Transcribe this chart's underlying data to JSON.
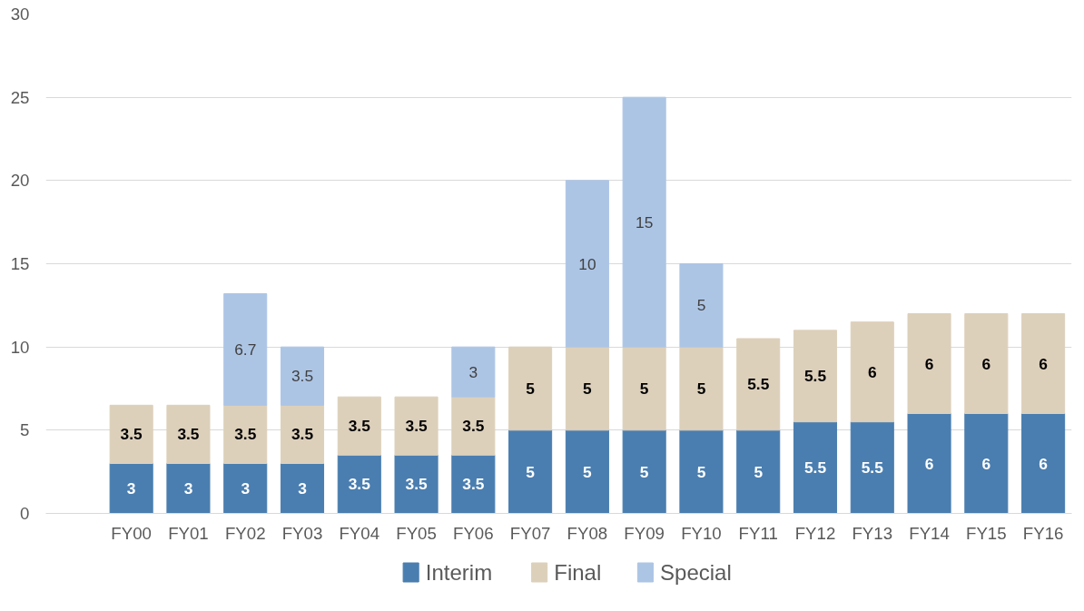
{
  "chart_data": {
    "type": "bar",
    "stacked": true,
    "categories": [
      null,
      "FY00",
      "FY01",
      "FY02",
      "FY03",
      "FY04",
      "FY05",
      "FY06",
      "FY07",
      "FY08",
      "FY09",
      "FY10",
      "FY11",
      "FY12",
      "FY13",
      "FY14",
      "FY15",
      "FY16"
    ],
    "series": [
      {
        "name": "Interim",
        "color": "#4a7eb0",
        "values": [
          null,
          3,
          3,
          3,
          3,
          3.5,
          3.5,
          3.5,
          5,
          5,
          5,
          5,
          5,
          5.5,
          5.5,
          6,
          6,
          6
        ]
      },
      {
        "name": "Final",
        "color": "#ddd0bb",
        "values": [
          null,
          3.5,
          3.5,
          3.5,
          3.5,
          3.5,
          3.5,
          3.5,
          5,
          5,
          5,
          5,
          5.5,
          5.5,
          6,
          6,
          6,
          6
        ]
      },
      {
        "name": "Special",
        "color": "#adc5e5",
        "values": [
          null,
          null,
          null,
          6.7,
          3.5,
          null,
          null,
          3,
          null,
          10,
          15,
          5,
          null,
          null,
          null,
          null,
          null,
          null
        ]
      }
    ],
    "ylim": [
      0,
      30
    ],
    "yticks": [
      0,
      5,
      10,
      15,
      20,
      25,
      30
    ],
    "grid": "y",
    "legend": "bottom",
    "data_labels": true
  }
}
